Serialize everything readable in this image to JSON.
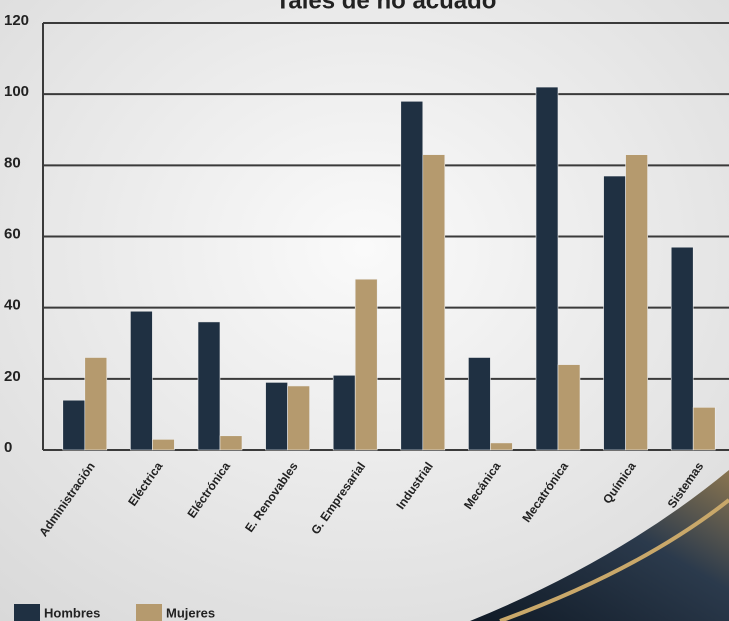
{
  "chart_data": {
    "type": "bar",
    "title": "Tales de no acuado",
    "categories": [
      "Administración",
      "Eléctrica",
      "Eléctrónica",
      "E. Renovables",
      "G. Empresarial",
      "Industrial",
      "Mecánica",
      "Mecatrónica",
      "Química",
      "Sistemas"
    ],
    "series": [
      {
        "name": "Hombres",
        "color": "#1f3042",
        "values": [
          14,
          39,
          36,
          19,
          21,
          98,
          26,
          102,
          77,
          57
        ]
      },
      {
        "name": "Mujeres",
        "color": "#b59a6e",
        "values": [
          26,
          3,
          4,
          18,
          48,
          83,
          2,
          24,
          83,
          12
        ]
      }
    ],
    "ylim": [
      0,
      120
    ],
    "yticks": [
      0,
      20,
      40,
      60,
      80,
      100,
      120
    ],
    "grid": true,
    "legend": "bottom-left"
  }
}
